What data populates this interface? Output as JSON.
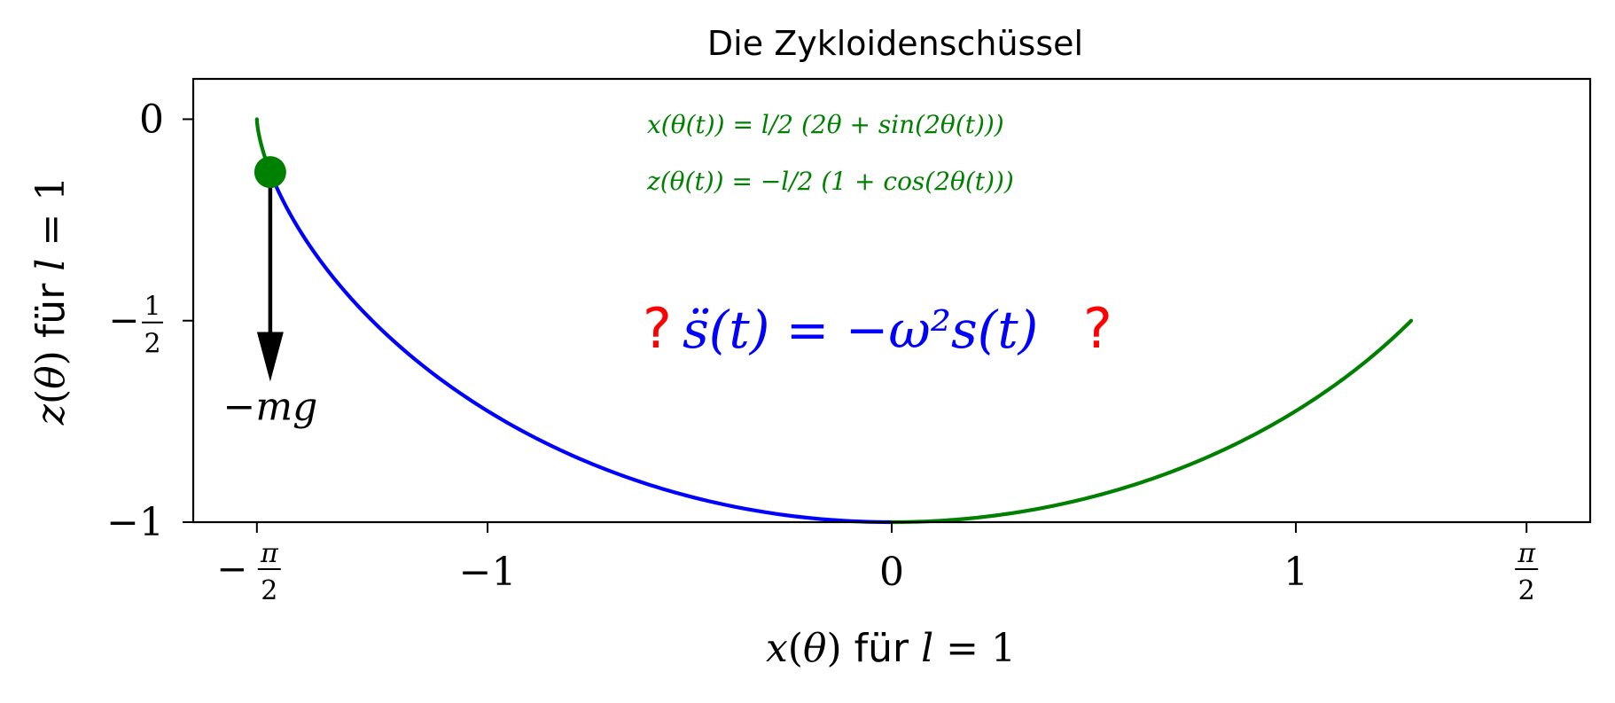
{
  "chart_data": {
    "type": "line",
    "title": "Die Zykloidenschüssel",
    "xlabel": {
      "var": "x",
      "arg": "θ",
      "mid": " für ",
      "l": "l",
      "rhs": " = 1"
    },
    "ylabel": {
      "var": "z",
      "arg": "θ",
      "mid": " für ",
      "l": "l",
      "rhs": " = 1"
    },
    "xlim": [
      -1.7283,
      1.7283
    ],
    "ylim": [
      -1.0,
      0.1
    ],
    "x_ticks": [
      {
        "value": -1.5708,
        "label": "π/2",
        "sign": "−",
        "frac": true
      },
      {
        "value": -1,
        "label": "−1",
        "frac": false
      },
      {
        "value": 0,
        "label": "0",
        "frac": false
      },
      {
        "value": 1,
        "label": "1",
        "frac": false
      },
      {
        "value": 1.5708,
        "label": "π/2",
        "sign": "",
        "frac": true
      }
    ],
    "y_ticks": [
      {
        "value": 0,
        "label": "0",
        "frac": false
      },
      {
        "value": -0.5,
        "num": "1",
        "den": "2",
        "sign": "−",
        "frac": true
      },
      {
        "value": -1,
        "label": "−1",
        "frac": false
      }
    ],
    "curve": {
      "x_formula": "l/2 (2θ + sin(2θ))",
      "z_formula": "−l/2 (1 + cos(2θ))",
      "l": 1,
      "theta_range": [
        -1.5708,
        0.7854
      ],
      "samples": 240
    },
    "series": [
      {
        "theta_start": -1.5708,
        "theta_end": -1.2,
        "color": "#008000"
      },
      {
        "theta_start": -1.2,
        "theta_end": 0.0,
        "color": "#0000ff"
      },
      {
        "theta_start": 0.0,
        "theta_end": 0.7854,
        "color": "#008000"
      }
    ],
    "point": {
      "theta": -1.2,
      "color": "#008000"
    },
    "arrow": {
      "dz": -0.52,
      "label": "−mg",
      "color": "#000000"
    },
    "annotations": {
      "eq_x": "x(θ(t)) = l/2 (2θ + sin(2θ(t)))",
      "eq_z": "z(θ(t)) = −l/2 (1 + cos(2θ(t)))",
      "center_eq": "s̈(t) = −ω²s(t)",
      "question_mark": "?"
    },
    "grid": false,
    "colors": {
      "green": "#008000",
      "blue": "#0000ff",
      "red": "#ff0000",
      "black": "#000000"
    }
  }
}
